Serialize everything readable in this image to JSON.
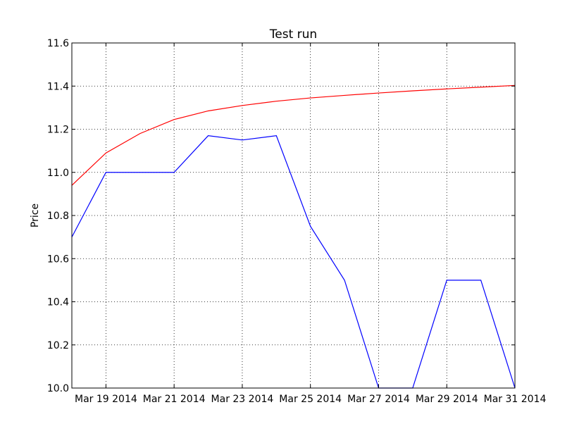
{
  "chart_data": {
    "type": "line",
    "title": "Test run",
    "xlabel": "",
    "ylabel": "Price",
    "x": [
      "2014-03-18",
      "2014-03-19",
      "2014-03-20",
      "2014-03-21",
      "2014-03-22",
      "2014-03-23",
      "2014-03-24",
      "2014-03-25",
      "2014-03-26",
      "2014-03-27",
      "2014-03-28",
      "2014-03-29",
      "2014-03-30",
      "2014-03-31"
    ],
    "xlim": [
      "2014-03-18",
      "2014-03-31"
    ],
    "ylim": [
      10.0,
      11.6
    ],
    "x_ticks": [
      {
        "date": "2014-03-19",
        "label": "Mar 19 2014"
      },
      {
        "date": "2014-03-21",
        "label": "Mar 21 2014"
      },
      {
        "date": "2014-03-23",
        "label": "Mar 23 2014"
      },
      {
        "date": "2014-03-25",
        "label": "Mar 25 2014"
      },
      {
        "date": "2014-03-27",
        "label": "Mar 27 2014"
      },
      {
        "date": "2014-03-29",
        "label": "Mar 29 2014"
      },
      {
        "date": "2014-03-31",
        "label": "Mar 31 2014"
      }
    ],
    "y_ticks": [
      "10.0",
      "10.2",
      "10.4",
      "10.6",
      "10.8",
      "11.0",
      "11.2",
      "11.4",
      "11.6"
    ],
    "grid": true,
    "series": [
      {
        "color": "#0000ff",
        "values": [
          10.7,
          11.0,
          11.0,
          11.0,
          11.17,
          11.15,
          11.17,
          10.75,
          10.5,
          10.0,
          10.0,
          10.5,
          10.5,
          10.0
        ]
      },
      {
        "color": "#ff0000",
        "values": [
          10.94,
          11.09,
          11.18,
          11.245,
          11.285,
          11.31,
          11.33,
          11.345,
          11.357,
          11.368,
          11.378,
          11.387,
          11.395,
          11.403
        ]
      }
    ]
  }
}
